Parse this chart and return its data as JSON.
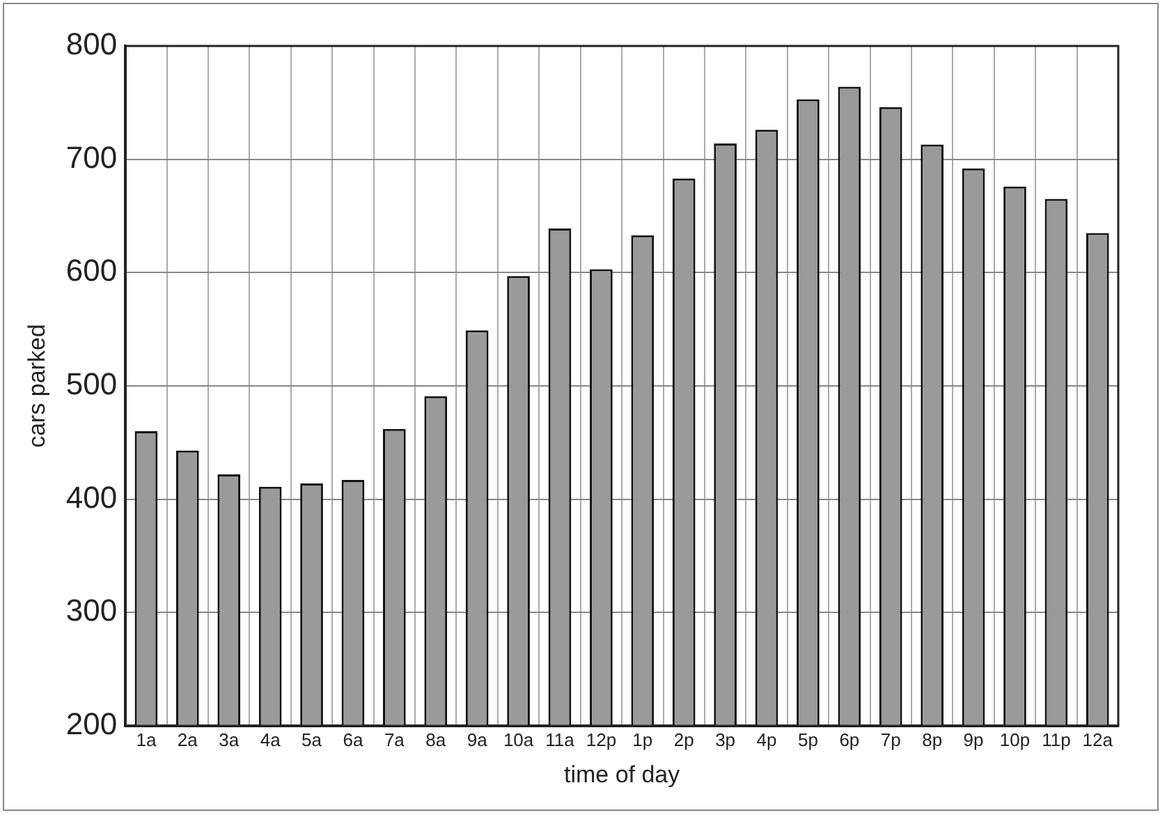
{
  "chart_data": {
    "type": "bar",
    "xlabel": "time of day",
    "ylabel": "cars parked",
    "categories": [
      "1a",
      "2a",
      "3a",
      "4a",
      "5a",
      "6a",
      "7a",
      "8a",
      "9a",
      "10a",
      "11a",
      "12p",
      "1p",
      "2p",
      "3p",
      "4p",
      "5p",
      "6p",
      "7p",
      "8p",
      "9p",
      "10p",
      "11p",
      "12a"
    ],
    "values": [
      460,
      443,
      422,
      411,
      414,
      417,
      462,
      491,
      549,
      597,
      639,
      603,
      633,
      683,
      714,
      726,
      753,
      764,
      746,
      713,
      692,
      676,
      665,
      635
    ],
    "color": "#9a9a9a",
    "ylim": [
      200,
      800
    ],
    "yticks": [
      200,
      300,
      400,
      500,
      600,
      700,
      800
    ],
    "grid": true,
    "legend": false
  }
}
